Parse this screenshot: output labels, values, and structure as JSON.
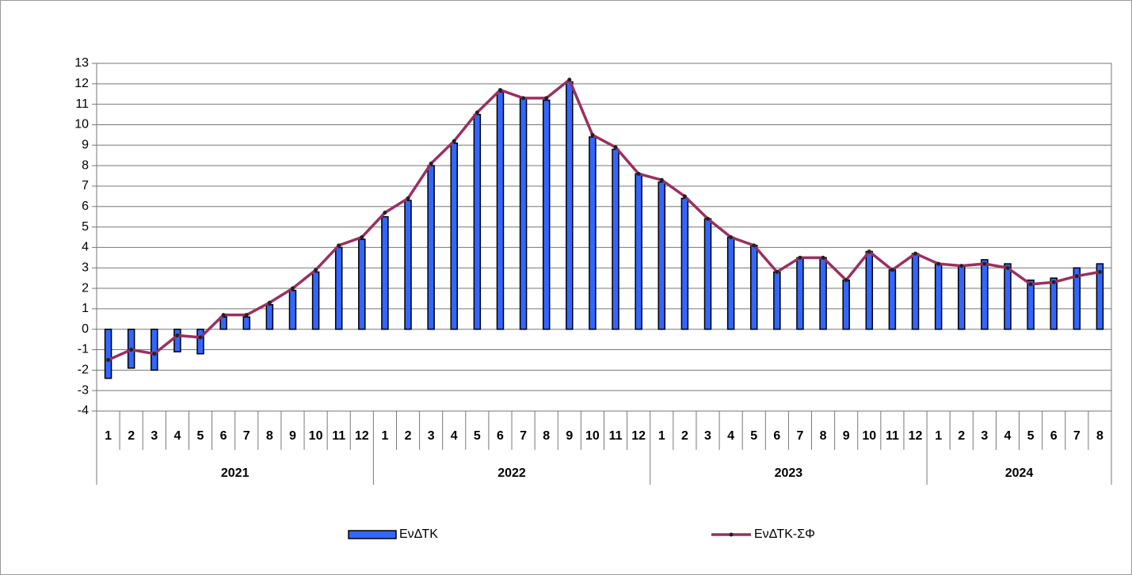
{
  "chart_data": {
    "type": "bar-line",
    "category_groups": [
      {
        "label": "2021",
        "categories": [
          "1",
          "2",
          "3",
          "4",
          "5",
          "6",
          "7",
          "8",
          "9",
          "10",
          "11",
          "12"
        ]
      },
      {
        "label": "2022",
        "categories": [
          "1",
          "2",
          "3",
          "4",
          "5",
          "6",
          "7",
          "8",
          "9",
          "10",
          "11",
          "12"
        ]
      },
      {
        "label": "2023",
        "categories": [
          "1",
          "2",
          "3",
          "4",
          "5",
          "6",
          "7",
          "8",
          "9",
          "10",
          "11",
          "12"
        ]
      },
      {
        "label": "2024",
        "categories": [
          "1",
          "2",
          "3",
          "4",
          "5",
          "6",
          "7",
          "8"
        ]
      }
    ],
    "series": [
      {
        "name": "ΕνΔΤΚ",
        "type": "bar",
        "color": "#3366ff",
        "values": [
          -2.4,
          -1.9,
          -2.0,
          -1.1,
          -1.2,
          0.6,
          0.6,
          1.2,
          1.9,
          2.8,
          4.0,
          4.4,
          5.5,
          6.3,
          8.0,
          9.1,
          10.5,
          11.6,
          11.3,
          11.2,
          12.1,
          9.4,
          8.8,
          7.6,
          7.2,
          6.4,
          5.4,
          4.5,
          4.1,
          2.8,
          3.5,
          3.5,
          2.4,
          3.8,
          2.9,
          3.7,
          3.2,
          3.1,
          3.4,
          3.2,
          2.4,
          2.5,
          3.0,
          3.2
        ]
      },
      {
        "name": "ΕνΔΤΚ-ΣΦ",
        "type": "line",
        "color": "#9b2f5f",
        "values": [
          -1.5,
          -1.0,
          -1.2,
          -0.3,
          -0.4,
          0.7,
          0.7,
          1.3,
          2.0,
          2.9,
          4.1,
          4.5,
          5.7,
          6.4,
          8.1,
          9.2,
          10.6,
          11.7,
          11.3,
          11.3,
          12.2,
          9.5,
          8.9,
          7.6,
          7.3,
          6.5,
          5.4,
          4.5,
          4.1,
          2.8,
          3.5,
          3.5,
          2.4,
          3.8,
          2.9,
          3.7,
          3.2,
          3.1,
          3.2,
          3.0,
          2.2,
          2.3,
          2.6,
          2.8
        ]
      }
    ],
    "ylim": [
      -4,
      13
    ],
    "yticks": [
      -4,
      -3,
      -2,
      -1,
      0,
      1,
      2,
      3,
      4,
      5,
      6,
      7,
      8,
      9,
      10,
      11,
      12,
      13
    ],
    "grid": true,
    "legend": "bottom"
  }
}
